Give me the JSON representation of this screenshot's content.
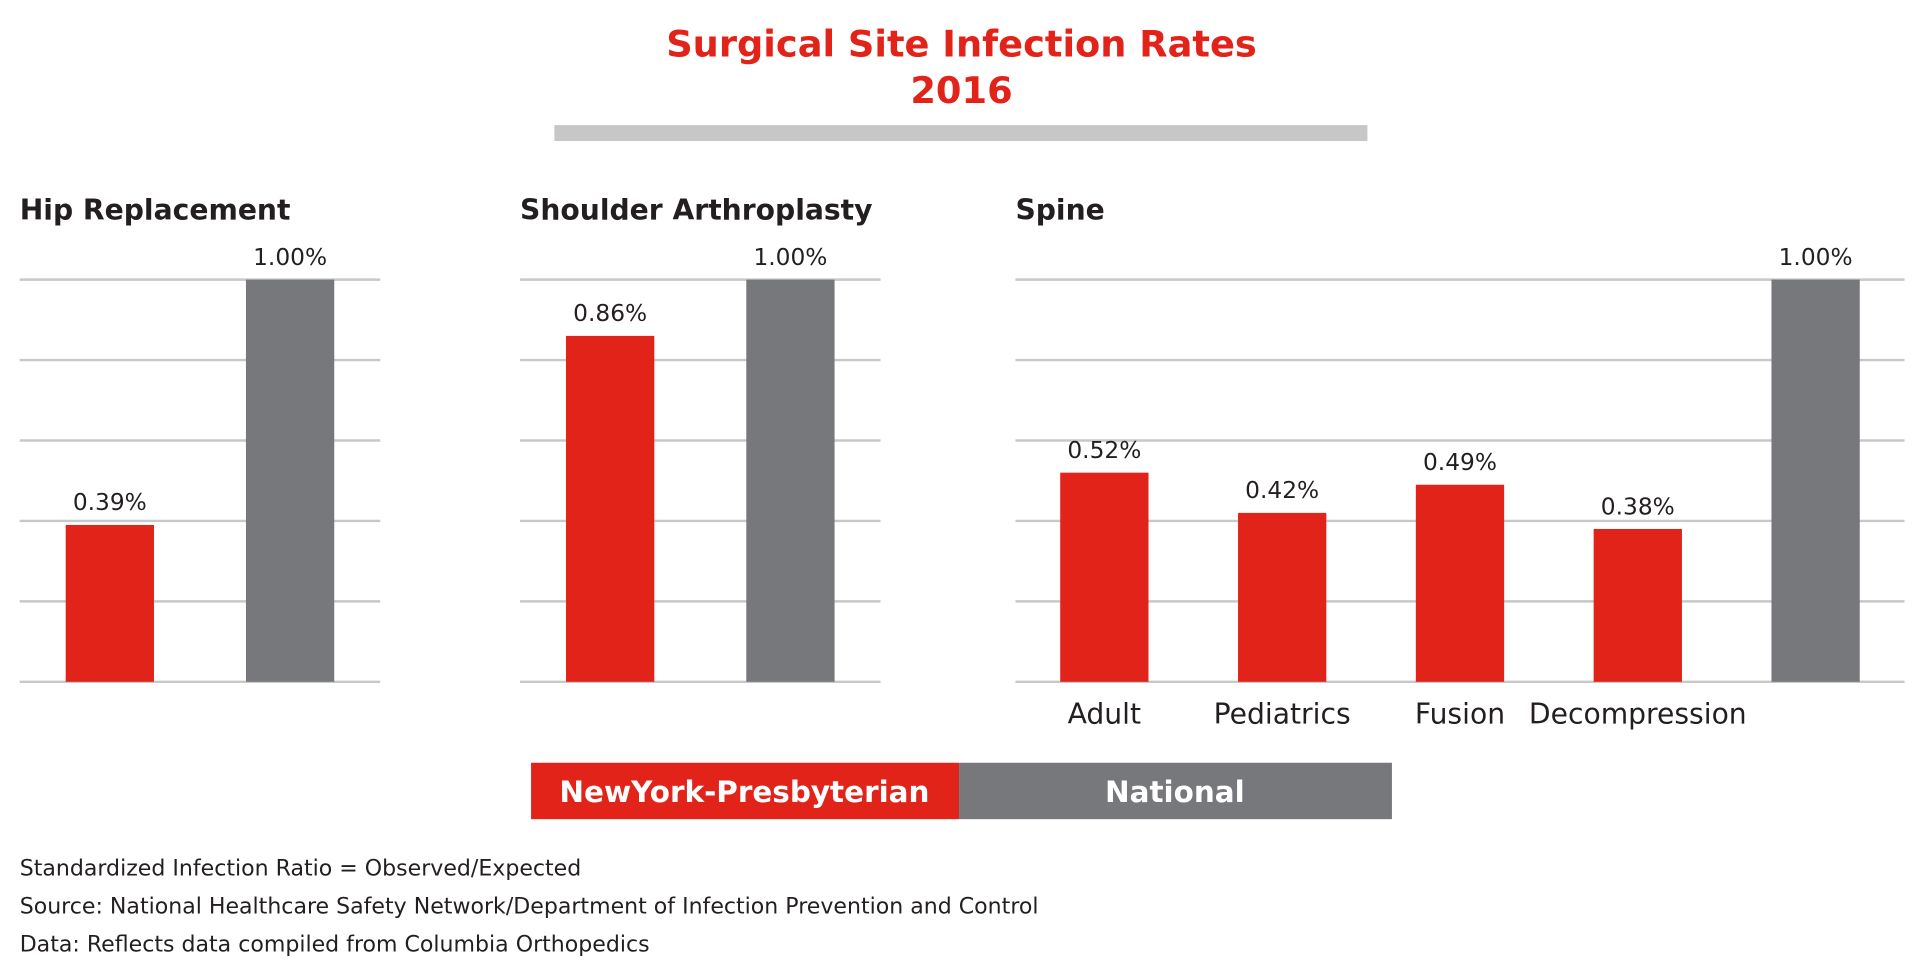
{
  "title": "Surgical Site Infection Rates",
  "subtitle": "2016",
  "notes": [
    "Standardized Infection Ratio = Observed/Expected",
    "Source: National Healthcare Safety Network/Department of Infection Prevention and Control",
    "Data: Reflects data compiled from Columbia Orthopedics"
  ],
  "chart_data": [
    {
      "type": "bar",
      "title": "Hip Replacement",
      "categories": [
        null,
        null
      ],
      "series": [
        {
          "name": "NewYork-Presbyterian",
          "color": "#e2231a",
          "values": [
            0.39,
            null
          ],
          "value_labels": [
            "0.39%",
            null
          ]
        },
        {
          "name": "National",
          "color": "#77787b",
          "values": [
            null,
            1.0
          ],
          "value_labels": [
            null,
            "1.00%"
          ]
        }
      ],
      "ylim": [
        0,
        1
      ],
      "yticks": [
        0,
        0.2,
        0.4,
        0.6,
        0.8,
        1
      ],
      "grid": true
    },
    {
      "type": "bar",
      "title": "Shoulder Arthroplasty",
      "categories": [
        null,
        null
      ],
      "series": [
        {
          "name": "NewYork-Presbyterian",
          "color": "#e2231a",
          "values": [
            0.86,
            null
          ],
          "value_labels": [
            "0.86%",
            null
          ]
        },
        {
          "name": "National",
          "color": "#77787b",
          "values": [
            null,
            1.0
          ],
          "value_labels": [
            null,
            "1.00%"
          ]
        }
      ],
      "ylim": [
        0,
        1
      ],
      "yticks": [
        0,
        0.2,
        0.4,
        0.6,
        0.8,
        1
      ],
      "grid": true
    },
    {
      "type": "bar",
      "title": "Spine",
      "categories": [
        "Adult",
        "Pediatrics",
        "Fusion",
        "Decompression",
        null
      ],
      "series": [
        {
          "name": "NewYork-Presbyterian",
          "color": "#e2231a",
          "values": [
            0.52,
            0.42,
            0.49,
            0.38,
            null
          ],
          "value_labels": [
            "0.52%",
            "0.42%",
            "0.49%",
            "0.38%",
            null
          ]
        },
        {
          "name": "National",
          "color": "#77787b",
          "values": [
            null,
            null,
            null,
            null,
            1.0
          ],
          "value_labels": [
            null,
            null,
            null,
            null,
            "1.00%"
          ]
        }
      ],
      "ylim": [
        0,
        1
      ],
      "yticks": [
        0,
        0.2,
        0.4,
        0.6,
        0.8,
        1
      ],
      "grid": true
    }
  ]
}
